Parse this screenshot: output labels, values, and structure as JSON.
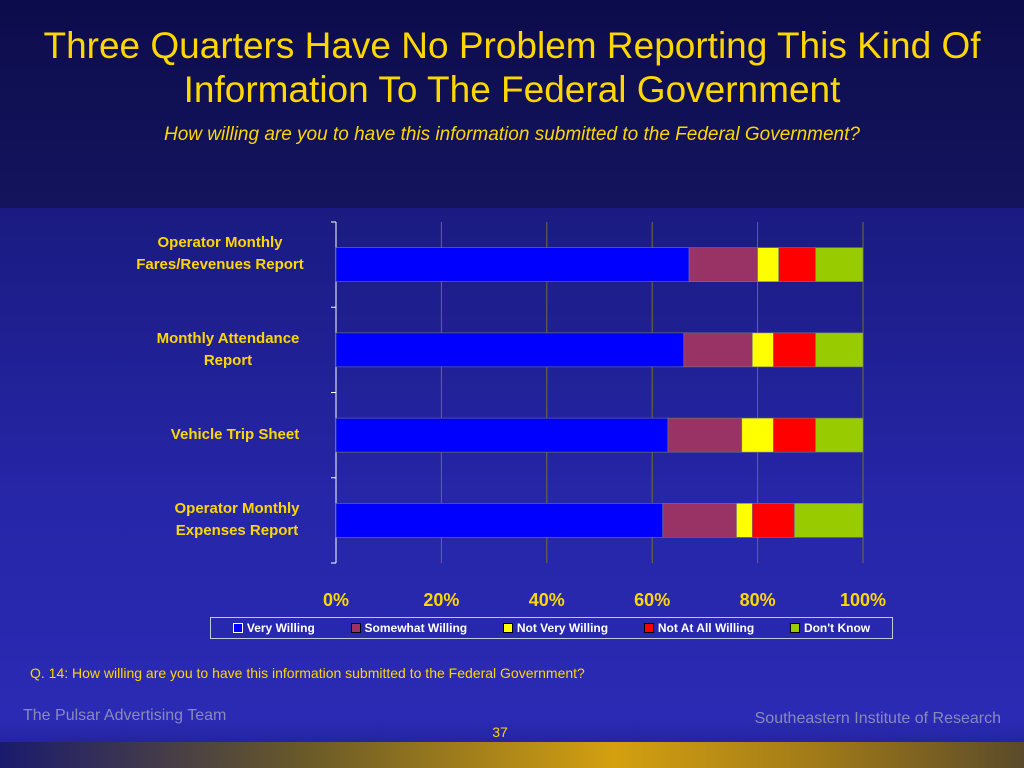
{
  "title": "Three Quarters Have No Problem Reporting This Kind Of Information To The Federal Government",
  "subtitle": "How willing are you to have this information submitted to the Federal Government?",
  "footnote": "Q. 14:  How willing are you to have this information submitted to the Federal Government?",
  "footer": {
    "left": "The Pulsar Advertising Team",
    "right": "Southeastern Institute of Research",
    "page_number": "37"
  },
  "chart_data": {
    "type": "bar",
    "orientation": "horizontal",
    "stacked": true,
    "percent_stacked": true,
    "categories": [
      "Operator Monthly Fares/Revenues Report",
      "Monthly Attendance Report",
      "Vehicle Trip Sheet",
      "Operator Monthly Expenses Report"
    ],
    "series": [
      {
        "name": "Very Willing",
        "color": "#0000ff",
        "values": [
          67,
          66,
          63,
          62
        ]
      },
      {
        "name": "Somewhat Willing",
        "color": "#993366",
        "values": [
          13,
          13,
          14,
          14
        ]
      },
      {
        "name": "Not Very Willing",
        "color": "#ffff00",
        "values": [
          4,
          4,
          6,
          3
        ]
      },
      {
        "name": "Not At All Willing",
        "color": "#ff0000",
        "values": [
          7,
          8,
          8,
          8
        ]
      },
      {
        "name": "Don't Know",
        "color": "#99cc00",
        "values": [
          9,
          9,
          9,
          13
        ]
      }
    ],
    "xlim": [
      0,
      100
    ],
    "x_ticks": [
      "0%",
      "20%",
      "40%",
      "60%",
      "80%",
      "100%"
    ],
    "grid": true,
    "legend_position": "bottom"
  }
}
